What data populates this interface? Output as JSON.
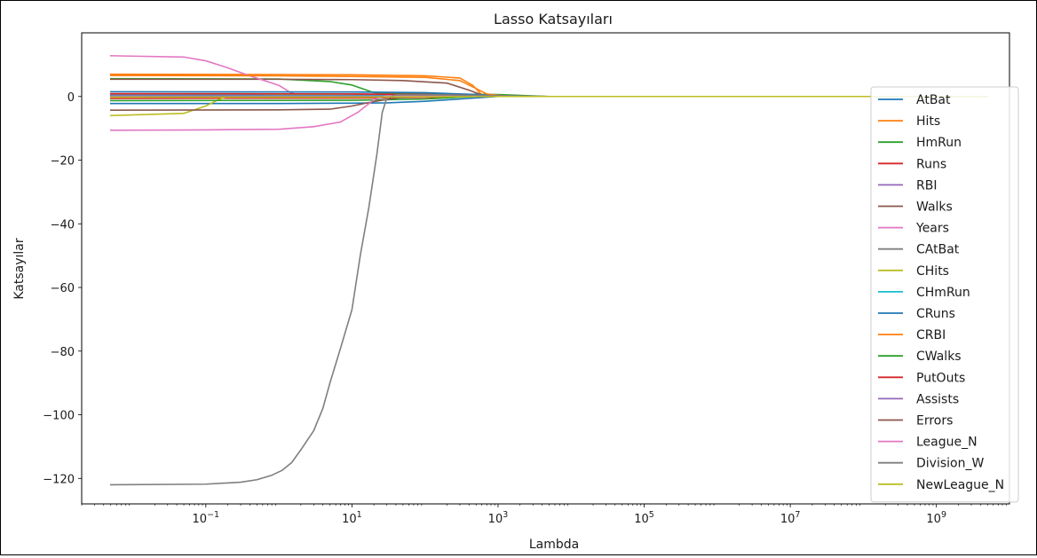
{
  "chart_data": {
    "type": "line",
    "title": "Lasso Katsayıları",
    "xlabel": "Lambda",
    "ylabel": "Katsayılar",
    "x_scale": "log",
    "xlim": [
      0.002,
      10000000000.0
    ],
    "ylim": [
      -128,
      20
    ],
    "x_ticks": [
      {
        "value": 0.1,
        "base": "10",
        "exp": "−1"
      },
      {
        "value": 10,
        "base": "10",
        "exp": "1"
      },
      {
        "value": 1000,
        "base": "10",
        "exp": "3"
      },
      {
        "value": 100000,
        "base": "10",
        "exp": "5"
      },
      {
        "value": 10000000,
        "base": "10",
        "exp": "7"
      },
      {
        "value": 1000000000,
        "base": "10",
        "exp": "9"
      }
    ],
    "y_ticks": [
      {
        "value": 0,
        "label": "0"
      },
      {
        "value": -20,
        "label": "−20"
      },
      {
        "value": -40,
        "label": "−40"
      },
      {
        "value": -60,
        "label": "−60"
      },
      {
        "value": -80,
        "label": "−80"
      },
      {
        "value": -100,
        "label": "−100"
      },
      {
        "value": -120,
        "label": "−120"
      }
    ],
    "grid": false,
    "legend_position": "right",
    "series": [
      {
        "name": "AtBat",
        "color": "#1f77b4",
        "points": [
          [
            0.005,
            -2.2
          ],
          [
            1,
            -2.2
          ],
          [
            10,
            -2.1
          ],
          [
            30,
            -2.0
          ],
          [
            100,
            -1.5
          ],
          [
            300,
            -0.8
          ],
          [
            1000,
            0
          ],
          [
            5000000000,
            0
          ]
        ]
      },
      {
        "name": "Hits",
        "color": "#ff7f0e",
        "points": [
          [
            0.005,
            7.0
          ],
          [
            1,
            6.9
          ],
          [
            10,
            6.8
          ],
          [
            100,
            6.5
          ],
          [
            300,
            5.8
          ],
          [
            450,
            3.5
          ],
          [
            600,
            0.5
          ],
          [
            1000,
            0
          ],
          [
            5000000000,
            0
          ]
        ]
      },
      {
        "name": "HmRun",
        "color": "#2ca02c",
        "points": [
          [
            0.005,
            5.6
          ],
          [
            1,
            5.5
          ],
          [
            5,
            4.7
          ],
          [
            10,
            3.6
          ],
          [
            15,
            2.2
          ],
          [
            20,
            1.2
          ],
          [
            30,
            1.0
          ],
          [
            1000,
            0.6
          ],
          [
            5000,
            0
          ],
          [
            5000000000,
            0
          ]
        ]
      },
      {
        "name": "Runs",
        "color": "#d62728",
        "points": [
          [
            0.005,
            -0.6
          ],
          [
            10,
            -0.5
          ],
          [
            100,
            -0.3
          ],
          [
            500,
            0
          ],
          [
            5000000000,
            0
          ]
        ]
      },
      {
        "name": "RBI",
        "color": "#9467bd",
        "points": [
          [
            0.005,
            0.8
          ],
          [
            10,
            0.8
          ],
          [
            100,
            0.6
          ],
          [
            500,
            0.3
          ],
          [
            2000,
            0
          ],
          [
            5000000000,
            0
          ]
        ]
      },
      {
        "name": "Walks",
        "color": "#8c564b",
        "points": [
          [
            0.005,
            5.4
          ],
          [
            1,
            5.4
          ],
          [
            10,
            5.3
          ],
          [
            50,
            5.0
          ],
          [
            200,
            4.2
          ],
          [
            400,
            2.0
          ],
          [
            600,
            0.5
          ],
          [
            1000,
            0
          ],
          [
            5000000000,
            0
          ]
        ]
      },
      {
        "name": "Years",
        "color": "#e377c2",
        "points": [
          [
            0.005,
            12.8
          ],
          [
            0.05,
            12.4
          ],
          [
            0.1,
            11.2
          ],
          [
            0.2,
            9.0
          ],
          [
            0.4,
            6.5
          ],
          [
            1,
            3.5
          ],
          [
            1.5,
            1.0
          ],
          [
            2,
            0.5
          ],
          [
            100,
            0.3
          ],
          [
            1000,
            0
          ],
          [
            5000000000,
            0
          ]
        ]
      },
      {
        "name": "CAtBat",
        "color": "#7f7f7f",
        "points": [
          [
            0.005,
            0.5
          ],
          [
            1,
            0.5
          ],
          [
            10,
            0.4
          ],
          [
            100,
            0.3
          ],
          [
            1000,
            0.1
          ],
          [
            5000,
            0
          ],
          [
            5000000000,
            0
          ]
        ]
      },
      {
        "name": "CHits",
        "color": "#bcbd22",
        "points": [
          [
            0.005,
            -6.0
          ],
          [
            0.05,
            -5.3
          ],
          [
            0.1,
            -3.0
          ],
          [
            0.15,
            -1.0
          ],
          [
            0.2,
            0.1
          ],
          [
            1,
            0.4
          ],
          [
            100,
            0.3
          ],
          [
            1000,
            0
          ],
          [
            5000000000,
            0
          ]
        ]
      },
      {
        "name": "CHmRun",
        "color": "#17becf",
        "points": [
          [
            0.005,
            0.3
          ],
          [
            10,
            0.3
          ],
          [
            100,
            0.2
          ],
          [
            1000,
            0
          ],
          [
            5000000000,
            0
          ]
        ]
      },
      {
        "name": "CRuns",
        "color": "#1f77b4",
        "points": [
          [
            0.005,
            1.5
          ],
          [
            10,
            1.4
          ],
          [
            100,
            1.2
          ],
          [
            500,
            0.6
          ],
          [
            1500,
            0
          ],
          [
            5000000000,
            0
          ]
        ]
      },
      {
        "name": "CRBI",
        "color": "#ff7f0e",
        "points": [
          [
            0.005,
            6.6
          ],
          [
            1,
            6.5
          ],
          [
            10,
            6.3
          ],
          [
            100,
            6.0
          ],
          [
            300,
            5.0
          ],
          [
            500,
            2.5
          ],
          [
            700,
            0.8
          ],
          [
            1500,
            0
          ],
          [
            5000000000,
            0
          ]
        ]
      },
      {
        "name": "CWalks",
        "color": "#2ca02c",
        "points": [
          [
            0.005,
            -1.3
          ],
          [
            10,
            -1.2
          ],
          [
            100,
            -0.8
          ],
          [
            500,
            0
          ],
          [
            5000000000,
            0
          ]
        ]
      },
      {
        "name": "PutOuts",
        "color": "#d62728",
        "points": [
          [
            0.005,
            0.9
          ],
          [
            10,
            0.8
          ],
          [
            100,
            0.6
          ],
          [
            600,
            0.3
          ],
          [
            3000,
            0
          ],
          [
            5000000000,
            0
          ]
        ]
      },
      {
        "name": "Assists",
        "color": "#9467bd",
        "points": [
          [
            0.005,
            0.2
          ],
          [
            100,
            0.1
          ],
          [
            1000,
            0
          ],
          [
            5000000000,
            0
          ]
        ]
      },
      {
        "name": "Errors",
        "color": "#8c564b",
        "points": [
          [
            0.005,
            -4.3
          ],
          [
            1,
            -4.2
          ],
          [
            5,
            -4.0
          ],
          [
            10,
            -3.0
          ],
          [
            20,
            -1.6
          ],
          [
            40,
            -0.5
          ],
          [
            80,
            0
          ],
          [
            5000000000,
            0
          ]
        ]
      },
      {
        "name": "League_N",
        "color": "#e377c2",
        "points": [
          [
            0.005,
            -10.6
          ],
          [
            0.1,
            -10.5
          ],
          [
            1,
            -10.3
          ],
          [
            3,
            -9.5
          ],
          [
            7,
            -8.0
          ],
          [
            12,
            -5.0
          ],
          [
            20,
            -1.0
          ],
          [
            30,
            0.2
          ],
          [
            200,
            0.1
          ],
          [
            1000,
            0
          ],
          [
            5000000000,
            0
          ]
        ]
      },
      {
        "name": "Division_W",
        "color": "#7f7f7f",
        "points": [
          [
            0.005,
            -122
          ],
          [
            0.1,
            -121.8
          ],
          [
            0.3,
            -121.2
          ],
          [
            0.5,
            -120.4
          ],
          [
            0.8,
            -119.0
          ],
          [
            1.1,
            -117.5
          ],
          [
            1.5,
            -115.0
          ],
          [
            2,
            -111
          ],
          [
            3,
            -105
          ],
          [
            4,
            -98
          ],
          [
            5,
            -90
          ],
          [
            7,
            -79
          ],
          [
            10,
            -67
          ],
          [
            13,
            -50
          ],
          [
            17,
            -35
          ],
          [
            22,
            -18
          ],
          [
            26,
            -5
          ],
          [
            30,
            -0.5
          ],
          [
            40,
            0.5
          ],
          [
            200,
            0.5
          ],
          [
            1000,
            0.3
          ],
          [
            5000,
            0
          ],
          [
            5000000000,
            0
          ]
        ]
      },
      {
        "name": "NewLeague_N",
        "color": "#bcbd22",
        "points": [
          [
            0.005,
            -0.2
          ],
          [
            10,
            -0.2
          ],
          [
            100,
            -0.1
          ],
          [
            1000,
            0
          ],
          [
            5000000000,
            0
          ]
        ]
      }
    ]
  }
}
